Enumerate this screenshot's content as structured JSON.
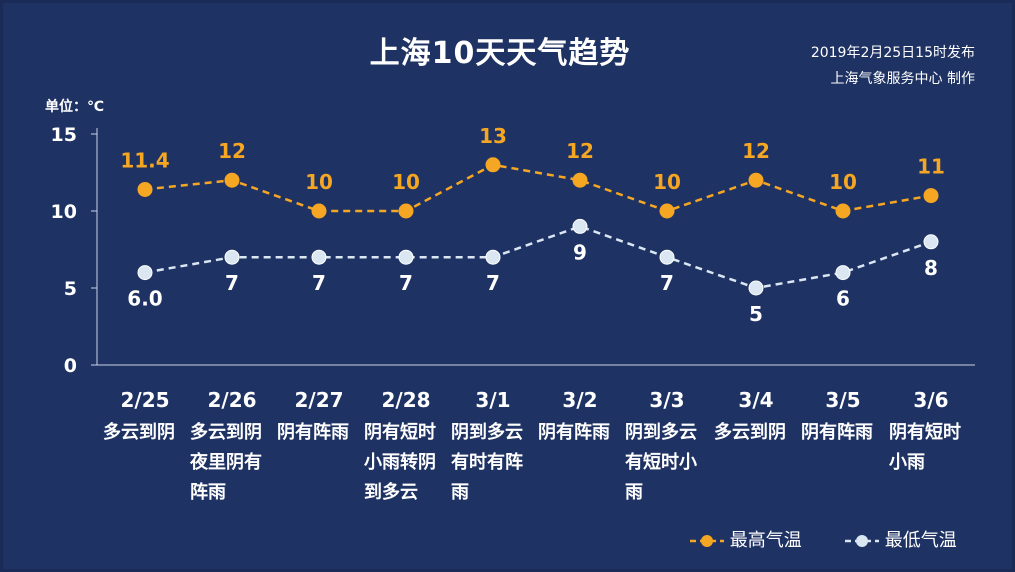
{
  "title": "上海10天天气趋势",
  "publish": {
    "line1": "2019年2月25日15时发布",
    "line2": "上海气象服务中心  制作"
  },
  "unit_label": "单位：℃",
  "colors": {
    "high": "#f5a623",
    "low": "#dbe6f3",
    "background": "#1e3263"
  },
  "chart_data": {
    "type": "line",
    "categories": [
      "2/25",
      "2/26",
      "2/27",
      "2/28",
      "3/1",
      "3/2",
      "3/3",
      "3/4",
      "3/5",
      "3/6"
    ],
    "weather": [
      "多云到阴",
      "多云到阴夜里阴有阵雨",
      "阴有阵雨",
      "阴有短时小雨转阴到多云",
      "阴到多云有时有阵雨",
      "阴有阵雨",
      "阴到多云有短时小雨",
      "多云到阴",
      "阴有阵雨",
      "阴有短时小雨"
    ],
    "ylim": [
      0,
      15
    ],
    "yticks": [
      0,
      5,
      10,
      15
    ],
    "series": [
      {
        "name": "最高气温",
        "values": [
          11.4,
          12,
          10,
          10,
          13,
          12,
          10,
          12,
          10,
          11
        ],
        "labels": [
          "11.4",
          "12",
          "10",
          "10",
          "13",
          "12",
          "10",
          "12",
          "10",
          "11"
        ]
      },
      {
        "name": "最低气温",
        "values": [
          6.0,
          7,
          7,
          7,
          7,
          9,
          7,
          5,
          6,
          8
        ],
        "labels": [
          "6.0",
          "7",
          "7",
          "7",
          "7",
          "9",
          "7",
          "5",
          "6",
          "8"
        ]
      }
    ],
    "legend_position": "bottom-right"
  }
}
